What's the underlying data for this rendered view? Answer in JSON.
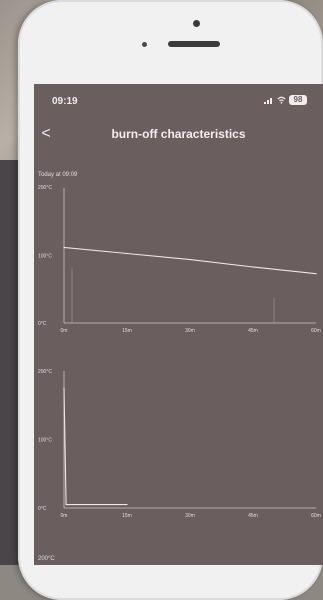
{
  "status_bar": {
    "time": "09:19",
    "battery": "98"
  },
  "header": {
    "back_glyph": "<",
    "title": "burn-off characteristics"
  },
  "chart_data": [
    {
      "type": "line",
      "subtitle": "Today at 09:09",
      "y_max_label": "200°C",
      "y_ticks": [
        "200°C",
        "100°C",
        "0°C"
      ],
      "x_ticks": [
        "0m",
        "15m",
        "30m",
        "45m",
        "60m"
      ],
      "series": [
        {
          "x": [
            0,
            15,
            30,
            45,
            60
          ],
          "values": [
            112,
            103,
            94,
            83,
            73
          ]
        }
      ]
    },
    {
      "type": "line",
      "y_ticks": [
        "200°C",
        "100°C",
        "0°C"
      ],
      "x_ticks": [
        "0m",
        "15m",
        "30m",
        "45m",
        "60m"
      ],
      "series": [
        {
          "x": [
            0,
            0.5,
            1,
            15
          ],
          "values": [
            175,
            5,
            5,
            5
          ]
        }
      ]
    }
  ],
  "third_chart": {
    "y_max_label": "200°C"
  },
  "colors": {
    "screen_bg": "#6b5e5f",
    "axis": "#cfc4c4",
    "line": "#efe6e6"
  }
}
